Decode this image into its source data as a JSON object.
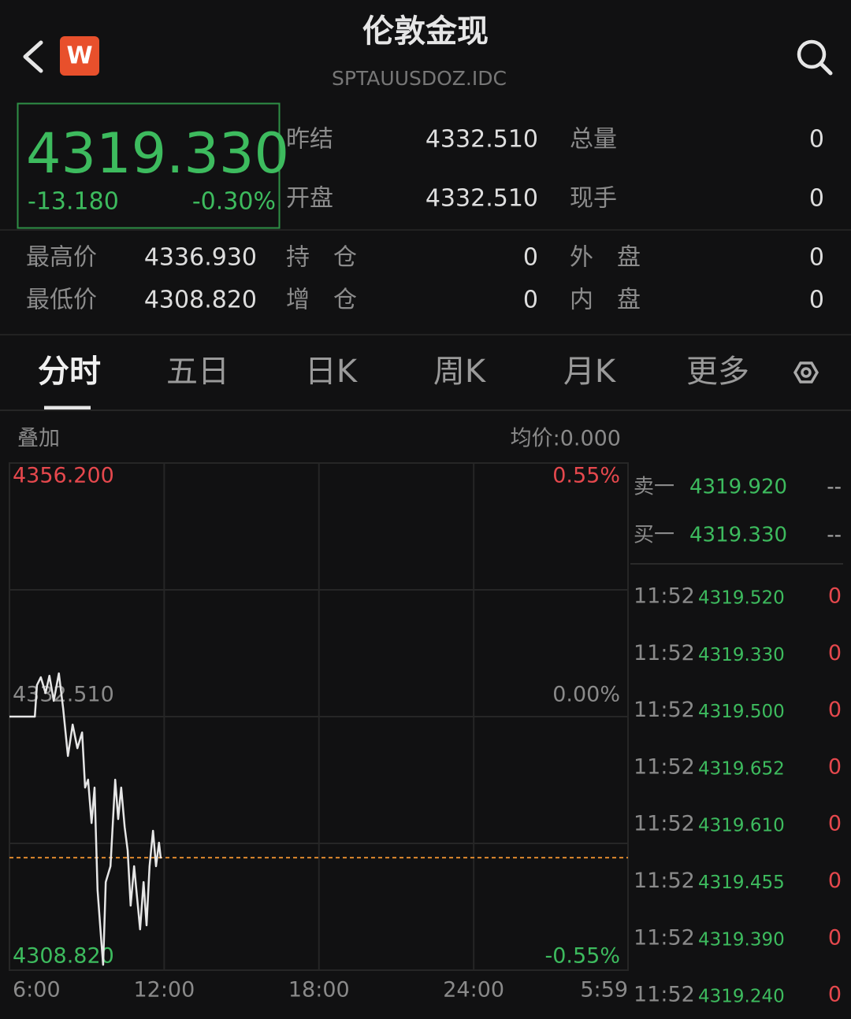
{
  "header": {
    "title": "伦敦金现",
    "subtitle": "SPTAUUSDOZ.IDC",
    "logo": "W"
  },
  "quote": {
    "price": "4319.330",
    "change": "-13.180",
    "change_percent": "-0.30%"
  },
  "stats": [
    {
      "label": "昨结",
      "value": "4332.510"
    },
    {
      "label": "总量",
      "value": "0"
    },
    {
      "label": "开盘",
      "value": "4332.510"
    },
    {
      "label": "现手",
      "value": "0"
    },
    {
      "label": "最高价",
      "value": "4336.930"
    },
    {
      "label": "持　仓",
      "value": "0"
    },
    {
      "label": "外　盘",
      "value": "0"
    },
    {
      "label": "最低价",
      "value": "4308.820"
    },
    {
      "label": "增　仓",
      "value": "0"
    },
    {
      "label": "内　盘",
      "value": "0"
    }
  ],
  "tabs": [
    "分时",
    "五日",
    "日K",
    "周K",
    "月K",
    "更多"
  ],
  "chart_data": {
    "type": "line",
    "annotations": [
      "叠加",
      "均价:0.000"
    ],
    "x": [
      "6:00",
      "6:59",
      "7:04",
      "7:13",
      "7:24",
      "7:33",
      "7:43",
      "7:55",
      "8:05",
      "8:16",
      "8:27",
      "8:38",
      "8:49",
      "8:56",
      "9:03",
      "9:11",
      "9:18",
      "9:25",
      "9:33",
      "9:38",
      "9:44",
      "9:55",
      "10:06",
      "10:13",
      "10:20",
      "10:28",
      "10:35",
      "10:42",
      "10:50",
      "10:57",
      "11:04",
      "11:12",
      "11:19",
      "11:26",
      "11:34",
      "11:41",
      "11:48",
      "11:52"
    ],
    "values": [
      4332.51,
      4332.51,
      4335.45,
      4336.19,
      4334.71,
      4336.33,
      4333.98,
      4336.55,
      4333.24,
      4328.83,
      4331.77,
      4329.56,
      4331.03,
      4325.88,
      4326.62,
      4322.57,
      4325.88,
      4316.32,
      4311.9,
      4309.33,
      4317.05,
      4318.53,
      4326.62,
      4322.94,
      4325.88,
      4322.2,
      4320.0,
      4314.85,
      4318.53,
      4315.58,
      4312.64,
      4317.05,
      4313.01,
      4318.53,
      4321.84,
      4318.53,
      4320.73,
      4319.26
    ],
    "color": "#e6e6e6",
    "reference_color": "#e08a2e",
    "xlim": [
      "6:00",
      "5:59"
    ],
    "xticks": [
      "6:00",
      "12:00",
      "18:00",
      "24:00",
      "5:59"
    ],
    "ylim": [
      4308.82,
      4356.2
    ],
    "yticks": [
      {
        "value": 4308.82,
        "label": "4308.820"
      },
      {
        "value": 4332.51,
        "label": "4332.510"
      },
      {
        "value": 4356.2,
        "label": "4356.200"
      }
    ],
    "ytick_colors": [
      "#3dbb5e",
      "#8a8a8a",
      "#e5484d"
    ],
    "y2lim": [
      -0.55,
      0.55
    ],
    "y2ticks": [
      {
        "value": -0.55,
        "label": "-0.55%"
      },
      {
        "value": 0,
        "label": "0.00%"
      },
      {
        "value": 0.55,
        "label": "0.55%"
      }
    ],
    "grid": true
  },
  "order_book": [
    {
      "label": "卖一",
      "price": "4319.920",
      "volume": "--"
    },
    {
      "label": "买一",
      "price": "4319.330",
      "volume": "--"
    }
  ],
  "trades": [
    {
      "time": "11:52",
      "price": "4319.520",
      "volume": "0"
    },
    {
      "time": "11:52",
      "price": "4319.330",
      "volume": "0"
    },
    {
      "time": "11:52",
      "price": "4319.500",
      "volume": "0"
    },
    {
      "time": "11:52",
      "price": "4319.652",
      "volume": "0"
    },
    {
      "time": "11:52",
      "price": "4319.610",
      "volume": "0"
    },
    {
      "time": "11:52",
      "price": "4319.455",
      "volume": "0"
    },
    {
      "time": "11:52",
      "price": "4319.390",
      "volume": "0"
    },
    {
      "time": "11:52",
      "price": "4319.240",
      "volume": "0"
    }
  ]
}
